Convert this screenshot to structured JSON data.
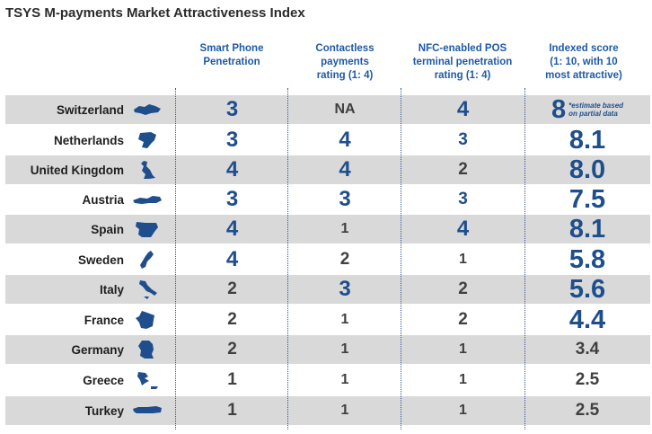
{
  "title": "TSYS M-payments Market Attractiveness Index",
  "headers": {
    "smartphone": [
      "Smart Phone",
      "Penetration"
    ],
    "contactless": [
      "Contactless",
      "payments",
      "rating (1: 4)"
    ],
    "nfc": [
      "NFC-enabled POS",
      "terminal penetration",
      "rating (1: 4)"
    ],
    "score": [
      "Indexed score",
      "(1: 10, with 10",
      "most attractive)"
    ]
  },
  "footnote": [
    "*estimate based",
    "on partial data"
  ],
  "rows": [
    {
      "country": "Switzerland",
      "smartphone": "3",
      "contactless": "NA",
      "nfc": "4",
      "score": "8",
      "map_icon": "switzerland-map-icon"
    },
    {
      "country": "Netherlands",
      "smartphone": "3",
      "contactless": "4",
      "nfc": "3",
      "score": "8.1",
      "map_icon": "netherlands-map-icon"
    },
    {
      "country": "United Kingdom",
      "smartphone": "4",
      "contactless": "4",
      "nfc": "2",
      "score": "8.0",
      "map_icon": "united-kingdom-map-icon"
    },
    {
      "country": "Austria",
      "smartphone": "3",
      "contactless": "3",
      "nfc": "3",
      "score": "7.5",
      "map_icon": "austria-map-icon"
    },
    {
      "country": "Spain",
      "smartphone": "4",
      "contactless": "1",
      "nfc": "4",
      "score": "8.1",
      "map_icon": "spain-map-icon"
    },
    {
      "country": "Sweden",
      "smartphone": "4",
      "contactless": "2",
      "nfc": "1",
      "score": "5.8",
      "map_icon": "sweden-map-icon"
    },
    {
      "country": "Italy",
      "smartphone": "2",
      "contactless": "3",
      "nfc": "2",
      "score": "5.6",
      "map_icon": "italy-map-icon"
    },
    {
      "country": "France",
      "smartphone": "2",
      "contactless": "1",
      "nfc": "2",
      "score": "4.4",
      "map_icon": "france-map-icon"
    },
    {
      "country": "Germany",
      "smartphone": "2",
      "contactless": "1",
      "nfc": "1",
      "score": "3.4",
      "map_icon": "germany-map-icon"
    },
    {
      "country": "Greece",
      "smartphone": "1",
      "contactless": "1",
      "nfc": "1",
      "score": "2.5",
      "map_icon": "greece-map-icon"
    },
    {
      "country": "Turkey",
      "smartphone": "1",
      "contactless": "1",
      "nfc": "1",
      "score": "2.5",
      "map_icon": "turkey-map-icon"
    }
  ],
  "colors": {
    "accent": "#1f4e8c",
    "header": "#1f5aa6",
    "row_shade": "#d9d9d9",
    "text": "#404040"
  }
}
